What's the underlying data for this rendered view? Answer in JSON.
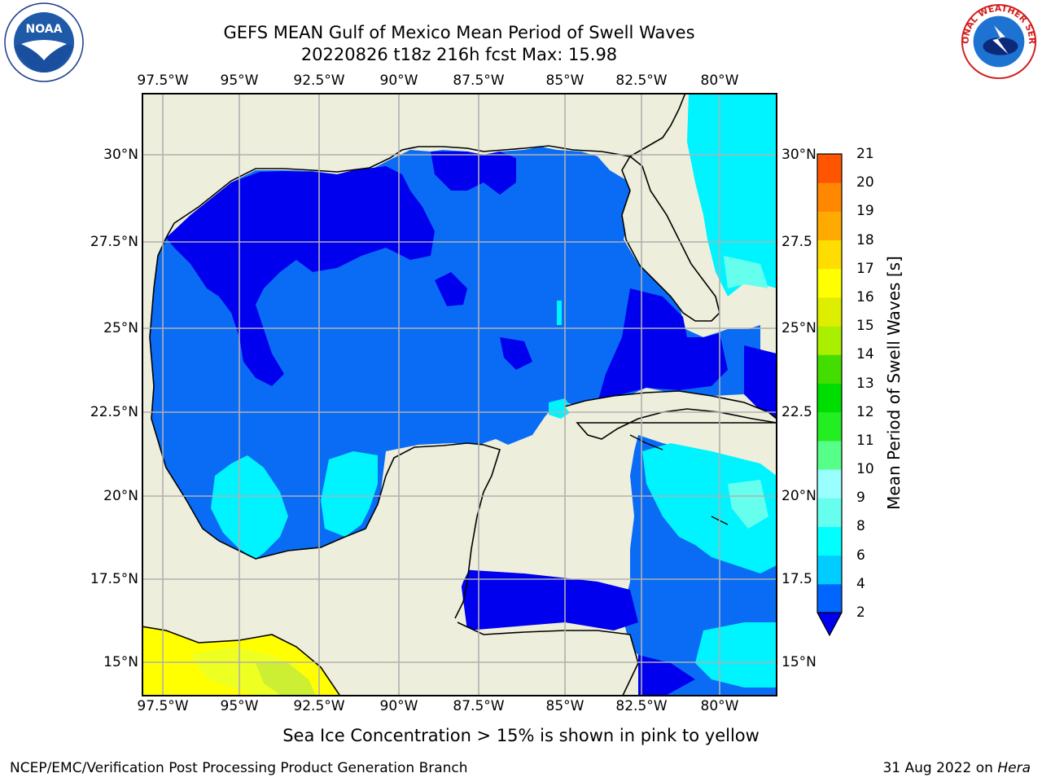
{
  "title": {
    "line1": "GEFS MEAN Gulf of Mexico Mean Period of Swell Waves",
    "line2": "20220826 t18z 216h fcst   Max: 15.98"
  },
  "logos": {
    "left": {
      "name": "noaa-logo",
      "text": "NOAA"
    },
    "right": {
      "name": "national-weather-service-logo",
      "text": "NATIONAL WEATHER SERVICE"
    }
  },
  "map": {
    "lon_labels": [
      "97.5°W",
      "95°W",
      "92.5°W",
      "90°W",
      "87.5°W",
      "85°W",
      "82.5°W",
      "80°W"
    ],
    "lat_labels_left": [
      "30°N",
      "27.5°N",
      "25°N",
      "22.5°N",
      "20°N",
      "17.5°N",
      "15°N"
    ],
    "lat_labels_right": [
      "30°N",
      "27.5",
      "25°N",
      "22.5",
      "20°N",
      "17.5",
      "15°N"
    ],
    "land_color": "#eeeedc",
    "grid_color": "#b0b0b0"
  },
  "colorbar": {
    "label": "Mean Period of Swell Waves [s]",
    "ticks": [
      "2",
      "4",
      "6",
      "8",
      "9",
      "10",
      "11",
      "12",
      "13",
      "14",
      "15",
      "16",
      "17",
      "18",
      "19",
      "20",
      "21"
    ],
    "colors": [
      "#0066ff",
      "#00ccff",
      "#00ffff",
      "#66ffee",
      "#99ffff",
      "#55ff88",
      "#22ee22",
      "#00dd00",
      "#44dd00",
      "#aaee00",
      "#ddee00",
      "#ffff00",
      "#ffdd00",
      "#ffaa00",
      "#ff8800",
      "#ff5500",
      "#ff2200",
      "#ff0000"
    ],
    "extend_color": "#0000ee"
  },
  "note": "Sea Ice Concentration > 15% is shown in pink to yellow",
  "footer": {
    "left": "NCEP/EMC/Verification Post Processing Product Generation Branch",
    "right_prefix": "31 Aug 2022 on ",
    "right_host": "Hera"
  }
}
